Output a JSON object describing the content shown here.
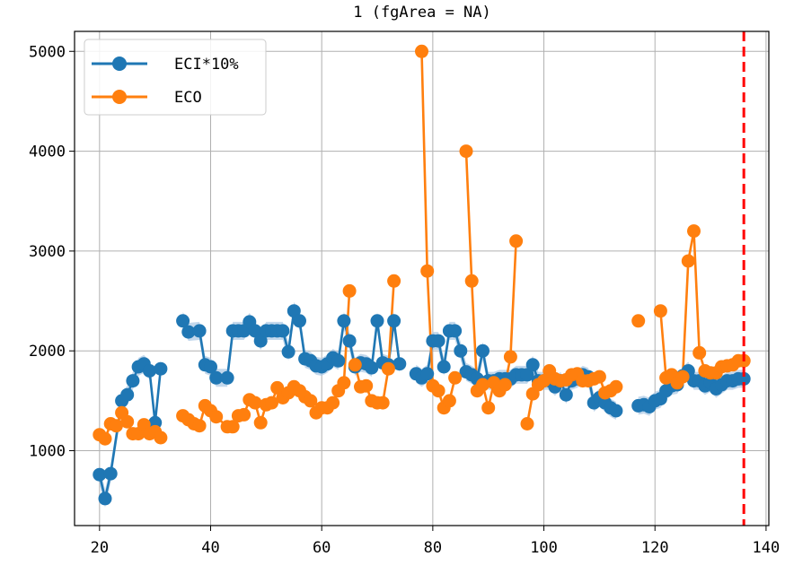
{
  "chart_data": {
    "type": "line",
    "title": "1 (fgArea = NA)",
    "xlabel": "",
    "ylabel": "",
    "xlim": [
      15.5,
      140.5
    ],
    "ylim": [
      250,
      5200
    ],
    "xticks": [
      20,
      40,
      60,
      80,
      100,
      120,
      140
    ],
    "yticks": [
      1000,
      2000,
      3000,
      4000,
      5000
    ],
    "grid": true,
    "legend_position": "top-left",
    "vline": {
      "x": 136,
      "color": "#ff0000",
      "style": "dashed"
    },
    "series": [
      {
        "name": "ECI*10%",
        "color": "#1f77b4",
        "band_color": "#a9c8e4",
        "points": [
          [
            20,
            760
          ],
          [
            21,
            520
          ],
          [
            22,
            770
          ],
          [
            24,
            1500
          ],
          [
            25,
            1560
          ],
          [
            26,
            1700
          ],
          [
            27,
            1840
          ],
          [
            28,
            1870
          ],
          [
            29,
            1800
          ],
          [
            30,
            1280
          ],
          [
            31,
            1820
          ],
          null,
          [
            35,
            2300
          ],
          [
            36,
            2190
          ],
          [
            38,
            2200
          ],
          [
            39,
            1860
          ],
          [
            40,
            1840
          ],
          [
            41,
            1730
          ],
          [
            43,
            1730
          ],
          [
            44,
            2200
          ],
          [
            45,
            2200
          ],
          [
            46,
            2200
          ],
          [
            47,
            2290
          ],
          [
            48,
            2200
          ],
          [
            49,
            2100
          ],
          [
            50,
            2200
          ],
          [
            51,
            2200
          ],
          [
            52,
            2200
          ],
          [
            53,
            2200
          ],
          [
            54,
            1990
          ],
          [
            55,
            2400
          ],
          [
            56,
            2300
          ],
          [
            57,
            1920
          ],
          [
            58,
            1900
          ],
          [
            59,
            1850
          ],
          [
            60,
            1840
          ],
          [
            61,
            1870
          ],
          [
            62,
            1930
          ],
          [
            63,
            1900
          ],
          [
            64,
            2300
          ],
          [
            65,
            2100
          ],
          [
            66,
            1840
          ],
          [
            67,
            1880
          ],
          [
            68,
            1870
          ],
          [
            69,
            1830
          ],
          [
            70,
            2300
          ],
          [
            71,
            1880
          ],
          [
            72,
            1860
          ],
          [
            73,
            2300
          ],
          [
            74,
            1870
          ],
          null,
          [
            77,
            1770
          ],
          [
            78,
            1730
          ],
          [
            79,
            1770
          ],
          [
            80,
            2100
          ],
          [
            81,
            2100
          ],
          [
            82,
            1840
          ],
          [
            83,
            2200
          ],
          [
            84,
            2200
          ],
          [
            85,
            2000
          ],
          [
            86,
            1790
          ],
          [
            87,
            1760
          ],
          [
            88,
            1720
          ],
          [
            89,
            2000
          ],
          [
            90,
            1700
          ],
          [
            91,
            1700
          ],
          [
            92,
            1720
          ],
          [
            93,
            1720
          ],
          [
            94,
            1720
          ],
          [
            95,
            1760
          ],
          [
            96,
            1760
          ],
          [
            97,
            1760
          ],
          [
            98,
            1860
          ],
          [
            99,
            1700
          ],
          [
            100,
            1700
          ],
          [
            101,
            1700
          ],
          [
            102,
            1640
          ],
          [
            103,
            1700
          ],
          [
            104,
            1560
          ],
          [
            105,
            1700
          ],
          [
            106,
            1720
          ],
          [
            107,
            1760
          ],
          [
            108,
            1740
          ],
          [
            109,
            1480
          ],
          [
            110,
            1530
          ],
          [
            111,
            1480
          ],
          [
            112,
            1430
          ],
          [
            113,
            1400
          ],
          null,
          [
            117,
            1450
          ],
          [
            118,
            1460
          ],
          [
            119,
            1440
          ],
          [
            120,
            1500
          ],
          [
            121,
            1520
          ],
          [
            122,
            1600
          ],
          [
            123,
            1650
          ],
          [
            124,
            1660
          ],
          [
            125,
            1750
          ],
          [
            126,
            1800
          ],
          [
            127,
            1700
          ],
          [
            128,
            1700
          ],
          [
            129,
            1650
          ],
          [
            130,
            1680
          ],
          [
            131,
            1620
          ],
          [
            132,
            1660
          ],
          [
            133,
            1700
          ],
          [
            134,
            1700
          ],
          [
            135,
            1720
          ],
          [
            136,
            1720
          ]
        ]
      },
      {
        "name": "ECO",
        "color": "#ff7f0e",
        "points": [
          [
            20,
            1160
          ],
          [
            21,
            1120
          ],
          [
            22,
            1270
          ],
          [
            23,
            1250
          ],
          [
            24,
            1380
          ],
          [
            25,
            1290
          ],
          [
            26,
            1170
          ],
          [
            27,
            1170
          ],
          [
            28,
            1260
          ],
          [
            29,
            1170
          ],
          [
            30,
            1190
          ],
          [
            31,
            1130
          ],
          null,
          [
            35,
            1350
          ],
          [
            36,
            1310
          ],
          [
            37,
            1270
          ],
          [
            38,
            1250
          ],
          [
            39,
            1450
          ],
          [
            40,
            1400
          ],
          [
            41,
            1340
          ],
          [
            43,
            1240
          ],
          [
            44,
            1240
          ],
          [
            45,
            1350
          ],
          [
            46,
            1360
          ],
          [
            47,
            1510
          ],
          [
            48,
            1480
          ],
          [
            49,
            1280
          ],
          [
            50,
            1460
          ],
          [
            51,
            1480
          ],
          [
            52,
            1630
          ],
          [
            53,
            1530
          ],
          [
            54,
            1580
          ],
          [
            55,
            1640
          ],
          [
            56,
            1600
          ],
          [
            57,
            1540
          ],
          [
            58,
            1500
          ],
          [
            59,
            1380
          ],
          [
            60,
            1430
          ],
          [
            61,
            1430
          ],
          [
            62,
            1480
          ],
          [
            63,
            1600
          ],
          [
            64,
            1680
          ],
          [
            65,
            2600
          ],
          null,
          [
            66,
            1860
          ],
          [
            67,
            1640
          ],
          [
            68,
            1650
          ],
          [
            69,
            1500
          ],
          [
            70,
            1480
          ],
          [
            71,
            1480
          ],
          [
            72,
            1820
          ],
          [
            73,
            2700
          ],
          null,
          [
            78,
            5000
          ],
          [
            79,
            2800
          ],
          [
            80,
            1650
          ],
          [
            81,
            1600
          ],
          [
            82,
            1430
          ],
          [
            83,
            1500
          ],
          [
            84,
            1730
          ],
          null,
          [
            86,
            4000
          ],
          [
            87,
            2700
          ],
          [
            88,
            1600
          ],
          [
            89,
            1660
          ],
          [
            90,
            1430
          ],
          [
            91,
            1680
          ],
          [
            92,
            1600
          ],
          [
            93,
            1660
          ],
          [
            94,
            1940
          ],
          [
            95,
            3100
          ],
          null,
          [
            97,
            1270
          ],
          [
            98,
            1570
          ],
          [
            99,
            1660
          ],
          [
            100,
            1700
          ],
          [
            101,
            1800
          ],
          [
            102,
            1720
          ],
          [
            103,
            1700
          ],
          [
            104,
            1710
          ],
          [
            105,
            1760
          ],
          [
            106,
            1770
          ],
          [
            107,
            1700
          ],
          [
            108,
            1700
          ],
          [
            109,
            1720
          ],
          [
            110,
            1740
          ],
          [
            111,
            1580
          ],
          [
            112,
            1600
          ],
          [
            113,
            1640
          ],
          null,
          [
            117,
            2300
          ],
          null,
          [
            121,
            2400
          ],
          [
            122,
            1730
          ],
          [
            123,
            1760
          ],
          [
            124,
            1680
          ],
          [
            125,
            1740
          ],
          [
            126,
            2900
          ],
          [
            127,
            3200
          ],
          [
            128,
            1980
          ],
          [
            129,
            1800
          ],
          [
            130,
            1780
          ],
          [
            131,
            1780
          ],
          [
            132,
            1840
          ],
          [
            133,
            1850
          ],
          [
            134,
            1860
          ],
          [
            135,
            1900
          ],
          [
            136,
            1900
          ]
        ]
      }
    ]
  }
}
